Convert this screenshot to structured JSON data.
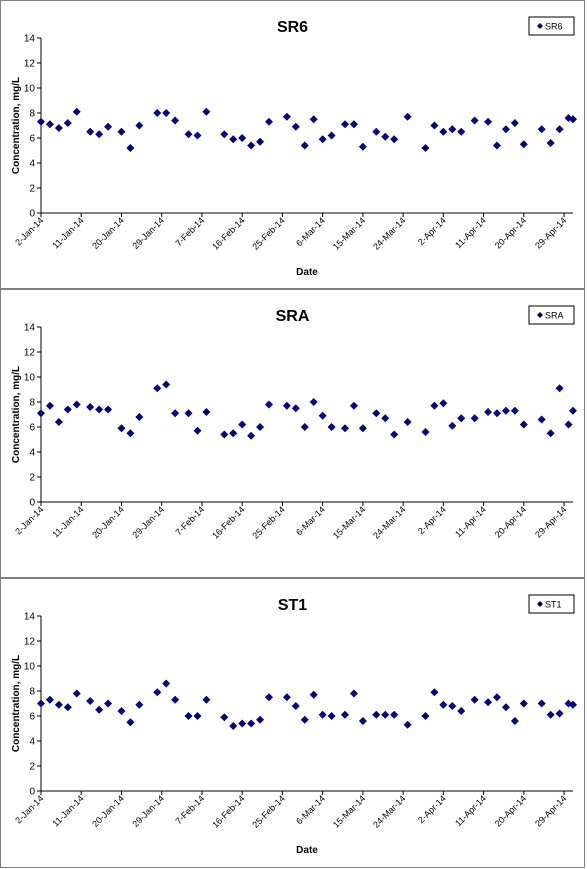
{
  "colors": {
    "marker": "#000080",
    "axis": "#000000",
    "panel_border": "#808080"
  },
  "chart_data": [
    {
      "type": "scatter",
      "title": "SR6",
      "xlabel": "Date",
      "ylabel": "Concentration, mg/L",
      "legend": "SR6",
      "legend_position": "top-right",
      "ylim": [
        0,
        14
      ],
      "yticks": [
        "0",
        "2",
        "4",
        "6",
        "8",
        "10",
        "12",
        "14"
      ],
      "xtick_labels": [
        "2-Jan-14",
        "11-Jan-14",
        "20-Jan-14",
        "29-Jan-14",
        "7-Feb-14",
        "16-Feb-14",
        "25-Feb-14",
        "6-Mar-14",
        "15-Mar-14",
        "24-Mar-14",
        "2-Apr-14",
        "11-Apr-14",
        "20-Apr-14",
        "29-Apr-14"
      ],
      "xlim": [
        "2014-01-02",
        "2014-05-01"
      ],
      "grid": false,
      "points": [
        {
          "x": "2014-01-02",
          "y": 7.3
        },
        {
          "x": "2014-01-04",
          "y": 7.1
        },
        {
          "x": "2014-01-06",
          "y": 6.8
        },
        {
          "x": "2014-01-08",
          "y": 7.2
        },
        {
          "x": "2014-01-10",
          "y": 8.1
        },
        {
          "x": "2014-01-13",
          "y": 6.5
        },
        {
          "x": "2014-01-15",
          "y": 6.3
        },
        {
          "x": "2014-01-17",
          "y": 6.9
        },
        {
          "x": "2014-01-20",
          "y": 6.5
        },
        {
          "x": "2014-01-22",
          "y": 5.2
        },
        {
          "x": "2014-01-24",
          "y": 7.0
        },
        {
          "x": "2014-01-28",
          "y": 8.0
        },
        {
          "x": "2014-01-30",
          "y": 8.0
        },
        {
          "x": "2014-02-01",
          "y": 7.4
        },
        {
          "x": "2014-02-04",
          "y": 6.3
        },
        {
          "x": "2014-02-06",
          "y": 6.2
        },
        {
          "x": "2014-02-08",
          "y": 8.1
        },
        {
          "x": "2014-02-12",
          "y": 6.3
        },
        {
          "x": "2014-02-14",
          "y": 5.9
        },
        {
          "x": "2014-02-16",
          "y": 6.0
        },
        {
          "x": "2014-02-18",
          "y": 5.4
        },
        {
          "x": "2014-02-20",
          "y": 5.7
        },
        {
          "x": "2014-02-22",
          "y": 7.3
        },
        {
          "x": "2014-02-26",
          "y": 7.7
        },
        {
          "x": "2014-02-28",
          "y": 6.9
        },
        {
          "x": "2014-03-02",
          "y": 5.4
        },
        {
          "x": "2014-03-04",
          "y": 7.5
        },
        {
          "x": "2014-03-06",
          "y": 5.9
        },
        {
          "x": "2014-03-08",
          "y": 6.2
        },
        {
          "x": "2014-03-11",
          "y": 7.1
        },
        {
          "x": "2014-03-13",
          "y": 7.1
        },
        {
          "x": "2014-03-15",
          "y": 5.3
        },
        {
          "x": "2014-03-18",
          "y": 6.5
        },
        {
          "x": "2014-03-20",
          "y": 6.1
        },
        {
          "x": "2014-03-22",
          "y": 5.9
        },
        {
          "x": "2014-03-25",
          "y": 7.7
        },
        {
          "x": "2014-03-29",
          "y": 5.2
        },
        {
          "x": "2014-03-31",
          "y": 7.0
        },
        {
          "x": "2014-04-02",
          "y": 6.5
        },
        {
          "x": "2014-04-04",
          "y": 6.7
        },
        {
          "x": "2014-04-06",
          "y": 6.5
        },
        {
          "x": "2014-04-09",
          "y": 7.4
        },
        {
          "x": "2014-04-12",
          "y": 7.3
        },
        {
          "x": "2014-04-14",
          "y": 5.4
        },
        {
          "x": "2014-04-16",
          "y": 6.7
        },
        {
          "x": "2014-04-18",
          "y": 7.2
        },
        {
          "x": "2014-04-20",
          "y": 5.5
        },
        {
          "x": "2014-04-24",
          "y": 6.7
        },
        {
          "x": "2014-04-26",
          "y": 5.6
        },
        {
          "x": "2014-04-28",
          "y": 6.7
        },
        {
          "x": "2014-04-30",
          "y": 7.6
        },
        {
          "x": "2014-05-01",
          "y": 7.5
        }
      ]
    },
    {
      "type": "scatter",
      "title": "SRA",
      "xlabel": "",
      "ylabel": "Concentration, mg/L",
      "legend": "SRA",
      "legend_position": "top-right",
      "ylim": [
        0,
        14
      ],
      "yticks": [
        "0",
        "2",
        "4",
        "6",
        "8",
        "10",
        "12",
        "14"
      ],
      "xtick_labels": [
        "2-Jan-14",
        "11-Jan-14",
        "20-Jan-14",
        "29-Jan-14",
        "7-Feb-14",
        "16-Feb-14",
        "25-Feb-14",
        "6-Mar-14",
        "15-Mar-14",
        "24-Mar-14",
        "2-Apr-14",
        "11-Apr-14",
        "20-Apr-14",
        "29-Apr-14"
      ],
      "xlim": [
        "2014-01-02",
        "2014-05-01"
      ],
      "grid": false,
      "points": [
        {
          "x": "2014-01-02",
          "y": 7.1
        },
        {
          "x": "2014-01-04",
          "y": 7.7
        },
        {
          "x": "2014-01-06",
          "y": 6.4
        },
        {
          "x": "2014-01-08",
          "y": 7.4
        },
        {
          "x": "2014-01-10",
          "y": 7.8
        },
        {
          "x": "2014-01-13",
          "y": 7.6
        },
        {
          "x": "2014-01-15",
          "y": 7.4
        },
        {
          "x": "2014-01-17",
          "y": 7.4
        },
        {
          "x": "2014-01-20",
          "y": 5.9
        },
        {
          "x": "2014-01-22",
          "y": 5.5
        },
        {
          "x": "2014-01-24",
          "y": 6.8
        },
        {
          "x": "2014-01-28",
          "y": 9.1
        },
        {
          "x": "2014-01-30",
          "y": 9.4
        },
        {
          "x": "2014-02-01",
          "y": 7.1
        },
        {
          "x": "2014-02-04",
          "y": 7.1
        },
        {
          "x": "2014-02-06",
          "y": 5.7
        },
        {
          "x": "2014-02-08",
          "y": 7.2
        },
        {
          "x": "2014-02-12",
          "y": 5.4
        },
        {
          "x": "2014-02-14",
          "y": 5.5
        },
        {
          "x": "2014-02-16",
          "y": 6.2
        },
        {
          "x": "2014-02-18",
          "y": 5.3
        },
        {
          "x": "2014-02-20",
          "y": 6.0
        },
        {
          "x": "2014-02-22",
          "y": 7.8
        },
        {
          "x": "2014-02-26",
          "y": 7.7
        },
        {
          "x": "2014-02-28",
          "y": 7.5
        },
        {
          "x": "2014-03-02",
          "y": 6.0
        },
        {
          "x": "2014-03-04",
          "y": 8.0
        },
        {
          "x": "2014-03-06",
          "y": 6.9
        },
        {
          "x": "2014-03-08",
          "y": 6.0
        },
        {
          "x": "2014-03-11",
          "y": 5.9
        },
        {
          "x": "2014-03-13",
          "y": 7.7
        },
        {
          "x": "2014-03-15",
          "y": 5.9
        },
        {
          "x": "2014-03-18",
          "y": 7.1
        },
        {
          "x": "2014-03-20",
          "y": 6.7
        },
        {
          "x": "2014-03-22",
          "y": 5.4
        },
        {
          "x": "2014-03-25",
          "y": 6.4
        },
        {
          "x": "2014-03-29",
          "y": 5.6
        },
        {
          "x": "2014-03-31",
          "y": 7.7
        },
        {
          "x": "2014-04-02",
          "y": 7.9
        },
        {
          "x": "2014-04-04",
          "y": 6.1
        },
        {
          "x": "2014-04-06",
          "y": 6.7
        },
        {
          "x": "2014-04-09",
          "y": 6.7
        },
        {
          "x": "2014-04-12",
          "y": 7.2
        },
        {
          "x": "2014-04-14",
          "y": 7.1
        },
        {
          "x": "2014-04-16",
          "y": 7.3
        },
        {
          "x": "2014-04-18",
          "y": 7.3
        },
        {
          "x": "2014-04-20",
          "y": 6.2
        },
        {
          "x": "2014-04-24",
          "y": 6.6
        },
        {
          "x": "2014-04-26",
          "y": 5.5
        },
        {
          "x": "2014-04-28",
          "y": 9.1
        },
        {
          "x": "2014-04-30",
          "y": 6.2
        },
        {
          "x": "2014-05-01",
          "y": 7.3
        }
      ]
    },
    {
      "type": "scatter",
      "title": "ST1",
      "xlabel": "Date",
      "ylabel": "Concentration, mg/L",
      "legend": "ST1",
      "legend_position": "top-right",
      "ylim": [
        0,
        14
      ],
      "yticks": [
        "0",
        "2",
        "4",
        "6",
        "8",
        "10",
        "12",
        "14"
      ],
      "xtick_labels": [
        "2-Jan-14",
        "11-Jan-14",
        "20-Jan-14",
        "29-Jan-14",
        "7-Feb-14",
        "16-Feb-14",
        "25-Feb-14",
        "6-Mar-14",
        "15-Mar-14",
        "24-Mar-14",
        "2-Apr-14",
        "11-Apr-14",
        "20-Apr-14",
        "29-Apr-14"
      ],
      "xlim": [
        "2014-01-02",
        "2014-05-01"
      ],
      "grid": false,
      "points": [
        {
          "x": "2014-01-02",
          "y": 7.0
        },
        {
          "x": "2014-01-04",
          "y": 7.3
        },
        {
          "x": "2014-01-06",
          "y": 6.9
        },
        {
          "x": "2014-01-08",
          "y": 6.7
        },
        {
          "x": "2014-01-10",
          "y": 7.8
        },
        {
          "x": "2014-01-13",
          "y": 7.2
        },
        {
          "x": "2014-01-15",
          "y": 6.5
        },
        {
          "x": "2014-01-17",
          "y": 7.0
        },
        {
          "x": "2014-01-20",
          "y": 6.4
        },
        {
          "x": "2014-01-22",
          "y": 5.5
        },
        {
          "x": "2014-01-24",
          "y": 6.9
        },
        {
          "x": "2014-01-28",
          "y": 7.9
        },
        {
          "x": "2014-01-30",
          "y": 8.6
        },
        {
          "x": "2014-02-01",
          "y": 7.3
        },
        {
          "x": "2014-02-04",
          "y": 6.0
        },
        {
          "x": "2014-02-06",
          "y": 6.0
        },
        {
          "x": "2014-02-08",
          "y": 7.3
        },
        {
          "x": "2014-02-12",
          "y": 5.9
        },
        {
          "x": "2014-02-14",
          "y": 5.2
        },
        {
          "x": "2014-02-16",
          "y": 5.4
        },
        {
          "x": "2014-02-18",
          "y": 5.4
        },
        {
          "x": "2014-02-20",
          "y": 5.7
        },
        {
          "x": "2014-02-22",
          "y": 7.5
        },
        {
          "x": "2014-02-26",
          "y": 7.5
        },
        {
          "x": "2014-02-28",
          "y": 6.8
        },
        {
          "x": "2014-03-02",
          "y": 5.7
        },
        {
          "x": "2014-03-04",
          "y": 7.7
        },
        {
          "x": "2014-03-06",
          "y": 6.1
        },
        {
          "x": "2014-03-08",
          "y": 6.0
        },
        {
          "x": "2014-03-11",
          "y": 6.1
        },
        {
          "x": "2014-03-13",
          "y": 7.8
        },
        {
          "x": "2014-03-15",
          "y": 5.6
        },
        {
          "x": "2014-03-18",
          "y": 6.1
        },
        {
          "x": "2014-03-20",
          "y": 6.1
        },
        {
          "x": "2014-03-22",
          "y": 6.1
        },
        {
          "x": "2014-03-25",
          "y": 5.3
        },
        {
          "x": "2014-03-29",
          "y": 6.0
        },
        {
          "x": "2014-03-31",
          "y": 7.9
        },
        {
          "x": "2014-04-02",
          "y": 6.9
        },
        {
          "x": "2014-04-04",
          "y": 6.8
        },
        {
          "x": "2014-04-06",
          "y": 6.4
        },
        {
          "x": "2014-04-09",
          "y": 7.3
        },
        {
          "x": "2014-04-12",
          "y": 7.1
        },
        {
          "x": "2014-04-14",
          "y": 7.5
        },
        {
          "x": "2014-04-16",
          "y": 6.7
        },
        {
          "x": "2014-04-18",
          "y": 5.6
        },
        {
          "x": "2014-04-20",
          "y": 7.0
        },
        {
          "x": "2014-04-24",
          "y": 7.0
        },
        {
          "x": "2014-04-26",
          "y": 6.1
        },
        {
          "x": "2014-04-28",
          "y": 6.2
        },
        {
          "x": "2014-04-30",
          "y": 7.0
        },
        {
          "x": "2014-05-01",
          "y": 6.9
        }
      ]
    }
  ]
}
